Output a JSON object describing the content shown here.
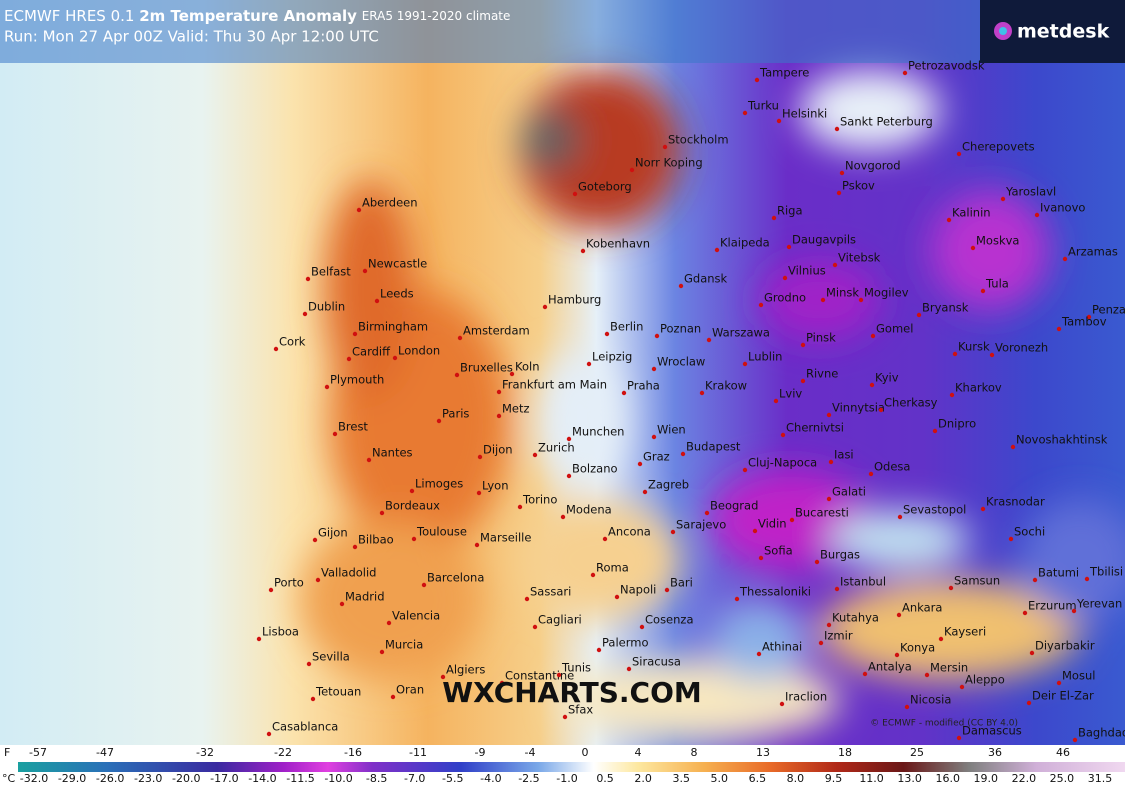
{
  "header": {
    "model": "ECMWF HRES 0.1",
    "title": "2m Temperature Anomaly",
    "climate": "ERA5 1991-2020 climate",
    "run": "Run: Mon 27 Apr 00Z Valid: Thu 30 Apr 12:00 UTC",
    "logo": "metdesk"
  },
  "map": {
    "cities": [
      "Petrozavodsk",
      "Tampere",
      "Turku",
      "Helsinki",
      "Sankt Peterburg",
      "Stockholm",
      "Norr Koping",
      "Cherepovets",
      "Novgorod",
      "Goteborg",
      "Pskov",
      "Yaroslavl",
      "Aberdeen",
      "Riga",
      "Kalinin",
      "Ivanovo",
      "Kobenhavn",
      "Klaipeda",
      "Daugavpils",
      "Moskva",
      "Arzamas",
      "Belfast",
      "Newcastle",
      "Vilnius",
      "Vitebsk",
      "Gdansk",
      "Tula",
      "Dublin",
      "Leeds",
      "Hamburg",
      "Grodno",
      "Minsk",
      "Mogilev",
      "Bryansk",
      "Penza",
      "Cork",
      "Birmingham",
      "Amsterdam",
      "Berlin",
      "Poznan",
      "Warszawa",
      "Pinsk",
      "Gomel",
      "Tambov",
      "Cardiff",
      "London",
      "Koln",
      "Leipzig",
      "Wroclaw",
      "Lublin",
      "Kursk",
      "Voronezh",
      "Plymouth",
      "Bruxelles",
      "Frankfurt am Main",
      "Praha",
      "Krakow",
      "Rivne",
      "Kyiv",
      "Kharkov",
      "Brest",
      "Paris",
      "Metz",
      "Lviv",
      "Vinnytsia",
      "Cherkasy",
      "Dnipro",
      "Nantes",
      "Dijon",
      "Zurich",
      "Munchen",
      "Wien",
      "Budapest",
      "Chernivtsi",
      "Novoshakhtinsk",
      "Bolzano",
      "Graz",
      "Iasi",
      "Odesa",
      "Limoges",
      "Lyon",
      "Cluj-Napoca",
      "Zagreb",
      "Galati",
      "Krasnodar",
      "Bordeaux",
      "Torino",
      "Beograd",
      "Bucaresti",
      "Sevastopol",
      "Modena",
      "Vidin",
      "Sochi",
      "Toulouse",
      "Marseille",
      "Ancona",
      "Sarajevo",
      "Gijon",
      "Bilbao",
      "Sofia",
      "Burgas",
      "Batumi",
      "Tbilisi",
      "Valladolid",
      "Barcelona",
      "Roma",
      "Istanbul",
      "Samsun",
      "Porto",
      "Madrid",
      "Bari",
      "Napoli",
      "Sassari",
      "Thessaloniki",
      "Ankara",
      "Erzurum",
      "Yerevan",
      "Valencia",
      "Cagliari",
      "Cosenza",
      "Kutahya",
      "Izmir",
      "Kayseri",
      "Lisboa",
      "Murcia",
      "Palermo",
      "Athinai",
      "Diyarbakir",
      "Konya",
      "Sevilla",
      "Siracusa",
      "Antalya",
      "Mersin",
      "Algiers",
      "Constantine",
      "Tunis",
      "Mosul",
      "Tetouan",
      "Oran",
      "Aleppo",
      "Nicosia",
      "Iraclion",
      "Deir El-Zar",
      "Sfax",
      "Casablanca",
      "Damascus",
      "Baghdad"
    ],
    "watermark": "WXCHARTS.COM",
    "credit": "© ECMWF - modified (CC BY 4.0)"
  },
  "colorbar": {
    "f_unit": "F",
    "f_labels": [
      "-57",
      "-47",
      "-32",
      "-22",
      "-16",
      "-11",
      "-9",
      "-4",
      "0",
      "4",
      "8",
      "13",
      "18",
      "25",
      "36",
      "46"
    ],
    "c_unit": "°C",
    "c_labels": [
      "-32.0",
      "-29.0",
      "-26.0",
      "-23.0",
      "-20.0",
      "-17.0",
      "-14.0",
      "-11.5",
      "-10.0",
      "-8.5",
      "-7.0",
      "-5.5",
      "-4.0",
      "-2.5",
      "-1.0",
      "0.5",
      "2.0",
      "3.5",
      "5.0",
      "6.5",
      "8.0",
      "9.5",
      "11.0",
      "13.0",
      "16.0",
      "19.0",
      "22.0",
      "25.0",
      "31.5"
    ]
  }
}
